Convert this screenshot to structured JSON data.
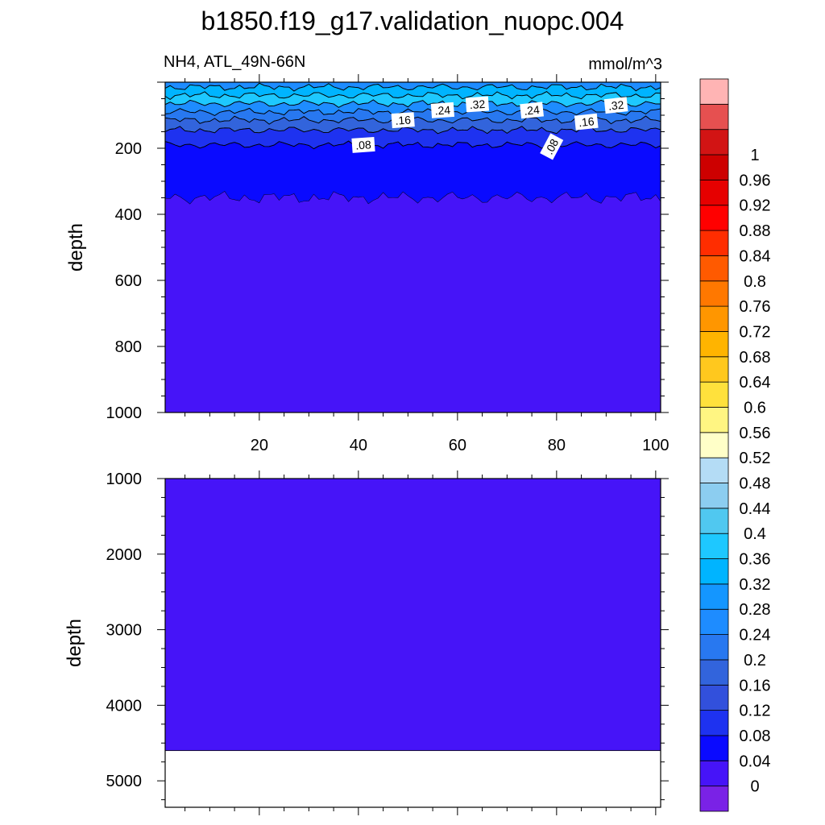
{
  "title": "b1850.f19_g17.validation_nuopc.004",
  "subtitle_left": "NH4, ATL_49N-66N",
  "subtitle_right": "mmol/m^3",
  "chart_data": [
    {
      "type": "contour",
      "panel": "upper",
      "xlabel": "",
      "ylabel": "depth",
      "xlim": [
        1,
        101
      ],
      "ylim": [
        1000,
        0
      ],
      "x_ticks": [
        "20",
        "40",
        "60",
        "80",
        "100"
      ],
      "y_ticks": [
        "200",
        "400",
        "600",
        "800",
        "1000"
      ],
      "contour_labels": [
        {
          "text": ".32",
          "x": 64,
          "depth": 67
        },
        {
          "text": ".32",
          "x": 92,
          "depth": 70
        },
        {
          "text": ".24",
          "x": 57,
          "depth": 85
        },
        {
          "text": ".24",
          "x": 75,
          "depth": 85
        },
        {
          "text": ".16",
          "x": 49,
          "depth": 115
        },
        {
          "text": ".16",
          "x": 86,
          "depth": 120
        },
        {
          "text": ".08",
          "x": 41,
          "depth": 190
        },
        {
          "text": ".08",
          "x": 79,
          "depth": 195
        }
      ],
      "bands": [
        {
          "top": 0,
          "bottom": 15,
          "color": "#1e8cff"
        },
        {
          "top": 15,
          "bottom": 40,
          "color": "#00b4ff"
        },
        {
          "top": 40,
          "bottom": 65,
          "color": "#1ec8ff"
        },
        {
          "top": 65,
          "bottom": 90,
          "color": "#1e8cff"
        },
        {
          "top": 90,
          "bottom": 115,
          "color": "#2878f0"
        },
        {
          "top": 115,
          "bottom": 145,
          "color": "#3264dc"
        },
        {
          "top": 145,
          "bottom": 190,
          "color": "#1e32f0"
        },
        {
          "top": 190,
          "bottom": 350,
          "color": "#0a0aff"
        },
        {
          "top": 350,
          "bottom": 1000,
          "color": "#4614f8"
        }
      ]
    },
    {
      "type": "contour",
      "panel": "lower",
      "xlabel": "",
      "ylabel": "depth",
      "xlim": [
        1,
        101
      ],
      "ylim": [
        5350,
        1000
      ],
      "y_ticks": [
        "1000",
        "2000",
        "3000",
        "4000",
        "5000"
      ],
      "data_bottom": 4600,
      "fill_color": "#4614f8"
    },
    {
      "type": "colorbar",
      "levels": [
        "0",
        "0.04",
        "0.08",
        "0.12",
        "0.16",
        "0.2",
        "0.24",
        "0.28",
        "0.32",
        "0.36",
        "0.4",
        "0.44",
        "0.48",
        "0.52",
        "0.56",
        "0.6",
        "0.64",
        "0.68",
        "0.72",
        "0.76",
        "0.8",
        "0.84",
        "0.88",
        "0.92",
        "0.96",
        "1"
      ],
      "colors": [
        "#7a22e6",
        "#4614f8",
        "#0a0aff",
        "#1e32f0",
        "#3250dc",
        "#3264dc",
        "#2878f0",
        "#1e8cff",
        "#1496ff",
        "#00b4ff",
        "#1ec8ff",
        "#50c8f0",
        "#8ccdf0",
        "#b4dcf5",
        "#ffffc8",
        "#fff582",
        "#ffe13c",
        "#ffc81e",
        "#ffb400",
        "#ff9600",
        "#ff7800",
        "#ff5a00",
        "#ff2d00",
        "#ff0000",
        "#e60000",
        "#cd0000",
        "#d21414",
        "#e65050",
        "#ffb4b4"
      ]
    }
  ]
}
